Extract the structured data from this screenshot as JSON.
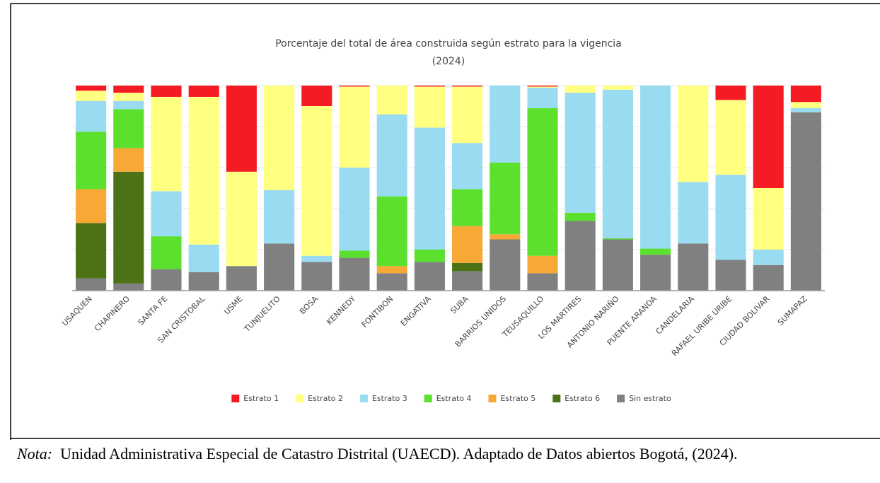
{
  "chart_data": {
    "type": "stacked_bar",
    "title": [
      "Porcentaje del total de área construida según estrato para la vigencia",
      "(2024)"
    ],
    "categories": [
      "USAQUEN",
      "CHAPINERO",
      "SANTA FE",
      "SAN CRISTOBAL",
      "USME",
      "TUNJUELITO",
      "BOSA",
      "KENNEDY",
      "FONTIBON",
      "ENGATIVA",
      "SUBA",
      "BARRIOS UNIDOS",
      "TEUSAQUILLO",
      "LOS MARTIRES",
      "ANTONIO NARIÑO",
      "PUENTE ARANDA",
      "CANDELARIA",
      "RAFAEL URIBE URIBE",
      "CIUDAD BOLIVAR",
      "SUMAPAZ"
    ],
    "series": [
      {
        "name": "Sin estrato",
        "color": "#808080",
        "values": [
          6,
          3.5,
          10.5,
          9,
          12,
          23,
          14,
          16,
          8.5,
          14,
          9.5,
          25,
          8.5,
          34,
          25,
          17.5,
          23,
          15,
          12.5,
          87
        ]
      },
      {
        "name": "Estrato 6",
        "color": "#4d7216",
        "values": [
          27,
          54.5,
          0,
          0,
          0,
          0,
          0,
          0,
          0,
          0,
          4,
          0,
          0,
          0,
          0,
          0,
          0,
          0,
          0,
          0
        ]
      },
      {
        "name": "Estrato 5",
        "color": "#f8a834",
        "values": [
          16.5,
          11.5,
          0,
          0,
          0,
          0,
          0,
          0,
          3.5,
          0,
          18,
          2.5,
          8.5,
          0,
          0,
          0,
          0,
          0,
          0,
          0
        ]
      },
      {
        "name": "Estrato 4",
        "color": "#5ae02d",
        "values": [
          28,
          19,
          16,
          0,
          0,
          0,
          0,
          3.5,
          34,
          6,
          18,
          35,
          72,
          4,
          0.5,
          3,
          0,
          0,
          0,
          0
        ]
      },
      {
        "name": "Estrato 3",
        "color": "#99dcf1",
        "values": [
          15,
          4,
          22,
          13.5,
          0,
          26,
          3,
          40.5,
          40,
          59.5,
          22.5,
          37.5,
          10,
          58.5,
          72.5,
          79.5,
          30,
          41.5,
          7.5,
          2
        ]
      },
      {
        "name": "Estrato 2",
        "color": "#ffff80",
        "values": [
          5,
          4,
          46,
          72,
          46,
          51,
          73,
          39.5,
          14,
          20,
          27.5,
          0,
          0.5,
          3.5,
          2,
          0,
          47,
          36.5,
          30,
          3
        ]
      },
      {
        "name": "Estrato 1",
        "color": "#f51b24",
        "values": [
          2.5,
          3.5,
          5.5,
          5.5,
          42,
          0,
          10,
          0.5,
          0,
          0.5,
          0.5,
          0,
          0.5,
          0,
          0,
          0,
          0,
          7,
          50,
          8
        ]
      }
    ],
    "legend_order": [
      6,
      5,
      4,
      3,
      2,
      1,
      0
    ],
    "ylim": [
      0,
      100
    ],
    "yticks": [
      0,
      20,
      40,
      60,
      80,
      100
    ],
    "grid": true
  },
  "note": {
    "label": "Nota:",
    "text": "Unidad Administrativa Especial de Catastro Distrital (UAECD). Adaptado de Datos abiertos Bogotá, (2024)."
  }
}
